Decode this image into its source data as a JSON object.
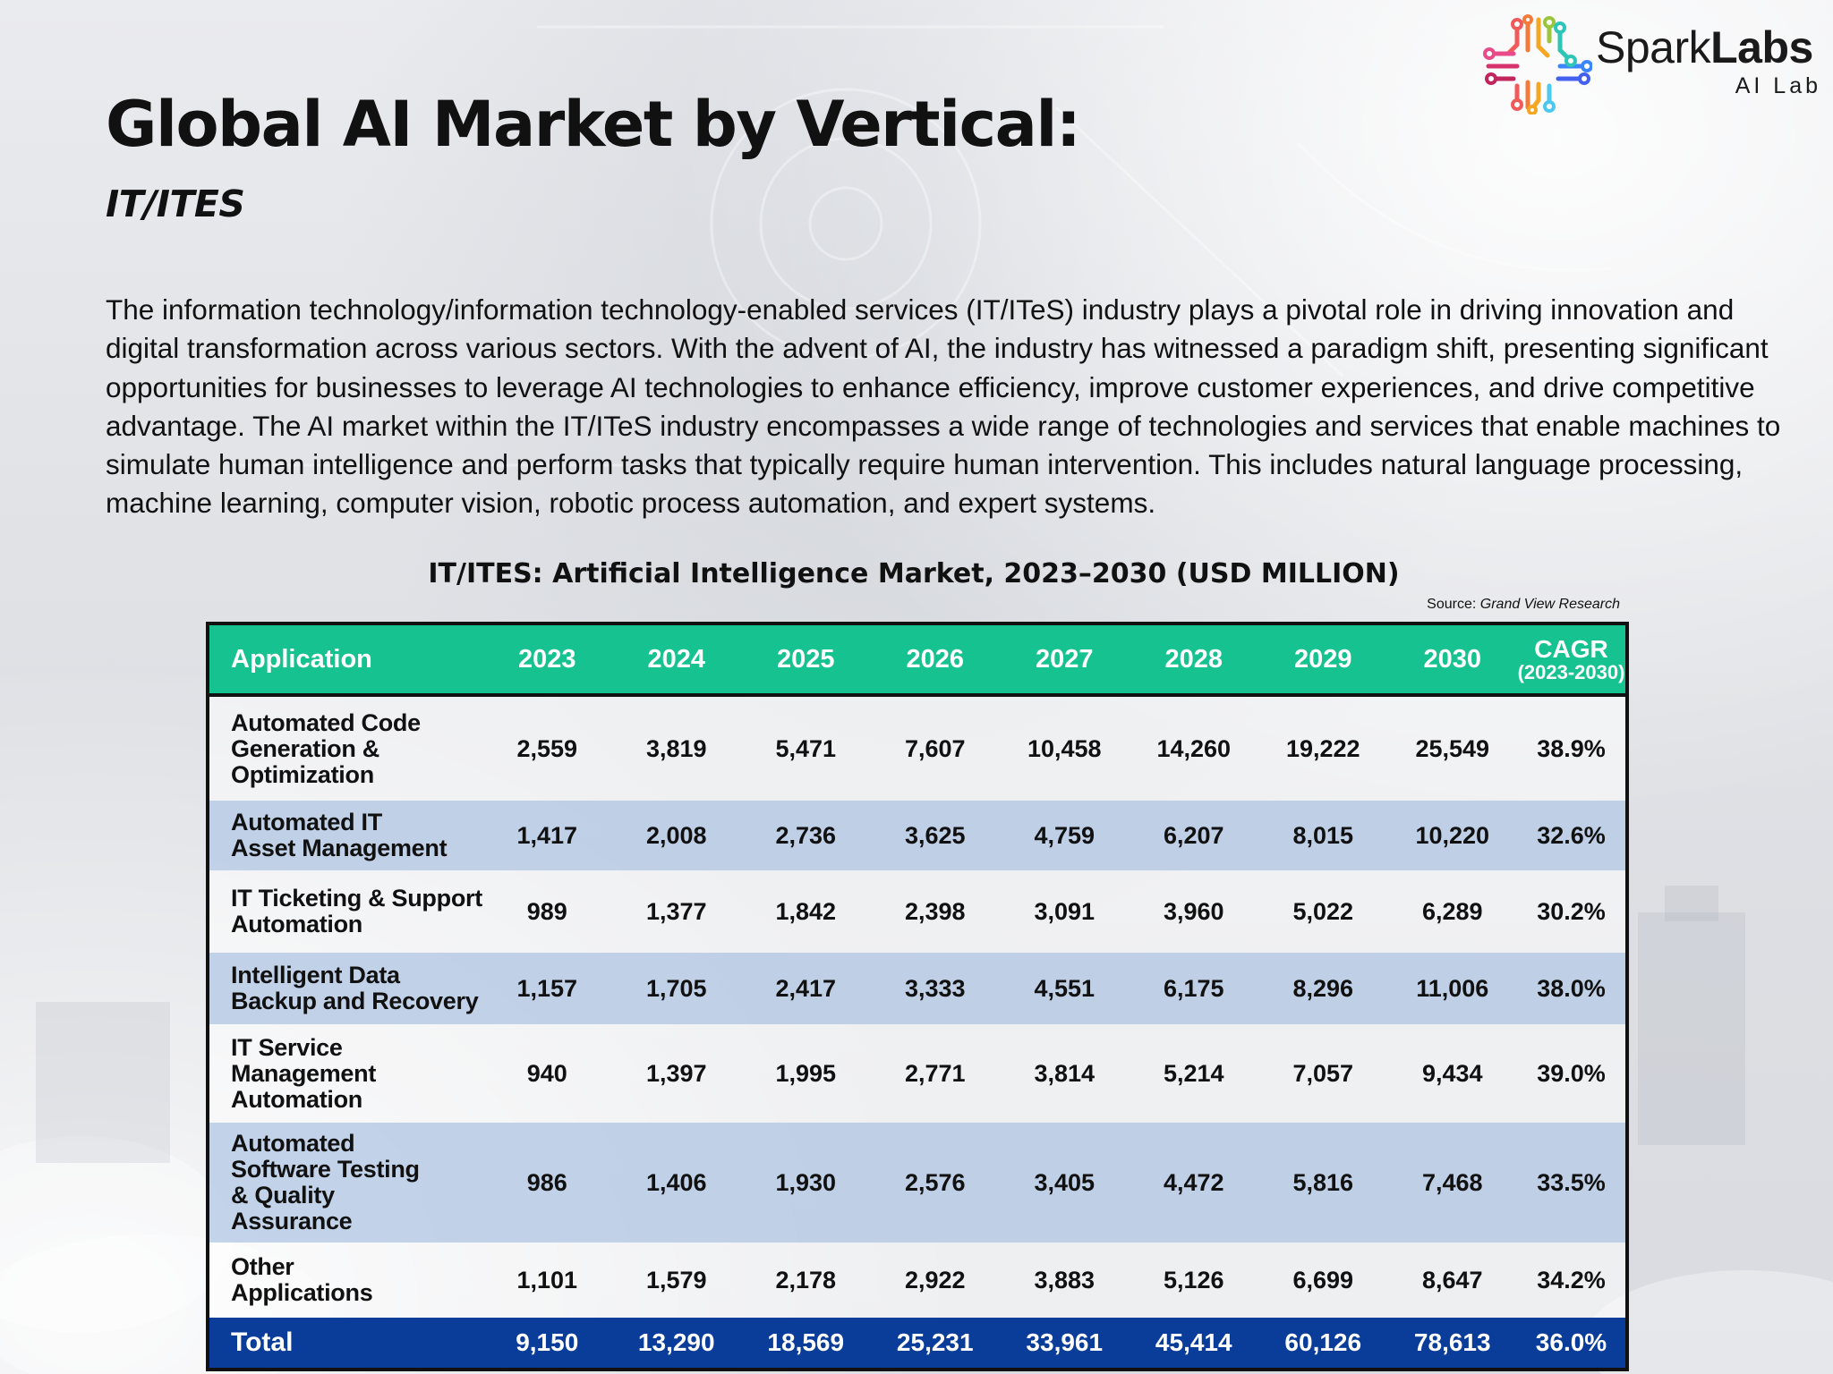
{
  "brand": {
    "name_light": "Spark",
    "name_bold": "Labs",
    "sub": "AI Lab"
  },
  "title": "Global AI Market by Vertical:",
  "subtitle": "IT/ITES",
  "intro": "The information technology/information technology-enabled services (IT/ITeS) industry plays a pivotal role in driving innovation and digital transformation across various sectors. With the advent of AI, the industry has witnessed a paradigm shift, presenting significant opportunities for businesses to leverage AI technologies to enhance efficiency, improve customer experiences, and drive competitive advantage. The AI market within the IT/ITeS industry encompasses a wide range of technologies and services that enable machines to simulate human intelligence and perform tasks that typically require human intervention. This includes natural language processing, machine learning, computer vision, robotic process automation, and expert systems.",
  "table": {
    "title": "IT/ITES: Artificial Intelligence Market, 2023–2030 (USD MILLION)",
    "source_label": "Source:",
    "source_name": "Grand View Research",
    "header": {
      "application": "Application",
      "years": [
        "2023",
        "2024",
        "2025",
        "2026",
        "2027",
        "2028",
        "2029",
        "2030"
      ],
      "cagr": "CAGR",
      "cagr_range": "(2023-2030)"
    },
    "rows": [
      {
        "app": "Automated Code\nGeneration &\nOptimization",
        "values": [
          "2,559",
          "3,819",
          "5,471",
          "7,607",
          "10,458",
          "14,260",
          "19,222",
          "25,549"
        ],
        "cagr": "38.9%"
      },
      {
        "app": "Automated IT\nAsset Management",
        "values": [
          "1,417",
          "2,008",
          "2,736",
          "3,625",
          "4,759",
          "6,207",
          "8,015",
          "10,220"
        ],
        "cagr": "32.6%"
      },
      {
        "app": "IT Ticketing & Support\nAutomation",
        "values": [
          "989",
          "1,377",
          "1,842",
          "2,398",
          "3,091",
          "3,960",
          "5,022",
          "6,289"
        ],
        "cagr": "30.2%"
      },
      {
        "app": "Intelligent Data\nBackup and Recovery",
        "values": [
          "1,157",
          "1,705",
          "2,417",
          "3,333",
          "4,551",
          "6,175",
          "8,296",
          "11,006"
        ],
        "cagr": "38.0%"
      },
      {
        "app": "IT Service\nManagement\nAutomation",
        "values": [
          "940",
          "1,397",
          "1,995",
          "2,771",
          "3,814",
          "5,214",
          "7,057",
          "9,434"
        ],
        "cagr": "39.0%"
      },
      {
        "app": "Automated\nSoftware Testing\n& Quality\nAssurance",
        "values": [
          "986",
          "1,406",
          "1,930",
          "2,576",
          "3,405",
          "4,472",
          "5,816",
          "7,468"
        ],
        "cagr": "33.5%"
      },
      {
        "app": "Other\nApplications",
        "values": [
          "1,101",
          "1,579",
          "2,178",
          "2,922",
          "3,883",
          "5,126",
          "6,699",
          "8,647"
        ],
        "cagr": "34.2%"
      }
    ],
    "total": {
      "label": "Total",
      "values": [
        "9,150",
        "13,290",
        "18,569",
        "25,231",
        "33,961",
        "45,414",
        "60,126",
        "78,613"
      ],
      "cagr": "36.0%"
    }
  },
  "colors": {
    "header_bg": "#17c291",
    "row_blue": "#bacde6",
    "total_bg": "#0a3c9a"
  }
}
